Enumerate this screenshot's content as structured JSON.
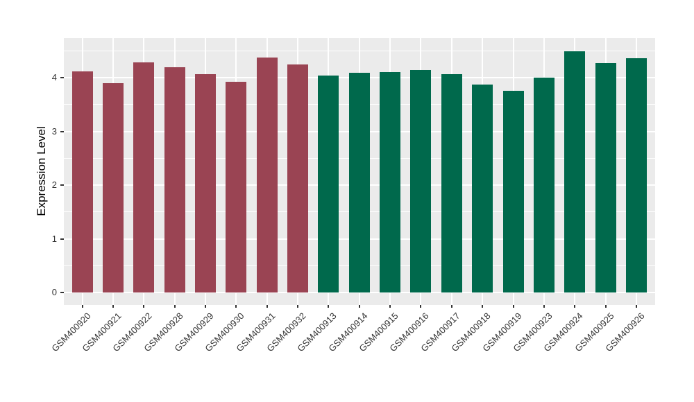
{
  "chart_data": {
    "type": "bar",
    "title": "",
    "xlabel": "",
    "ylabel": "Expression Level",
    "categories": [
      "GSM400920",
      "GSM400921",
      "GSM400922",
      "GSM400928",
      "GSM400929",
      "GSM400930",
      "GSM400931",
      "GSM400932",
      "GSM400913",
      "GSM400914",
      "GSM400915",
      "GSM400916",
      "GSM400917",
      "GSM400918",
      "GSM400919",
      "GSM400923",
      "GSM400924",
      "GSM400925",
      "GSM400926"
    ],
    "values": [
      4.11,
      3.9,
      4.29,
      4.2,
      4.06,
      3.92,
      4.38,
      4.25,
      4.04,
      4.09,
      4.1,
      4.14,
      4.07,
      3.87,
      3.75,
      4.0,
      4.49,
      4.27,
      4.36
    ],
    "groups": [
      "maroon",
      "maroon",
      "maroon",
      "maroon",
      "maroon",
      "maroon",
      "maroon",
      "maroon",
      "green",
      "green",
      "green",
      "green",
      "green",
      "green",
      "green",
      "green",
      "green",
      "green",
      "green"
    ],
    "group_colors": {
      "maroon": "#9A4453",
      "green": "#00694C"
    },
    "ylim": [
      0,
      4.73
    ],
    "yticks": [
      0,
      1,
      2,
      3,
      4
    ],
    "yticks_minor": [
      0.5,
      1.5,
      2.5,
      3.5,
      4.5
    ],
    "grid": true,
    "legend": "none",
    "panel_bg": "#EBEBEB",
    "grid_color": "#FFFFFF",
    "axis_text_color": "#333333"
  }
}
